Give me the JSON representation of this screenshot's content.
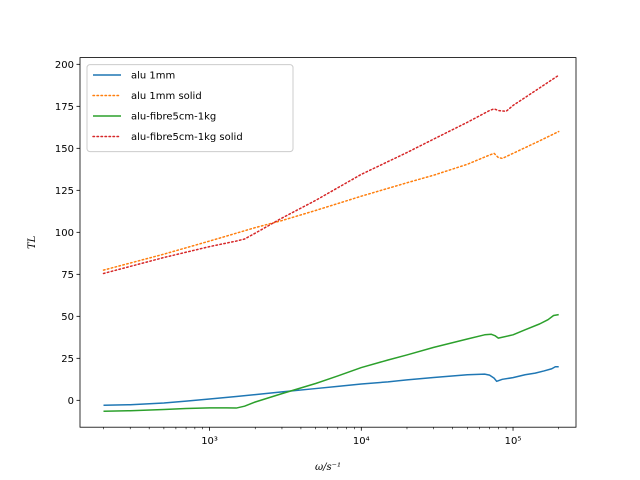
{
  "chart_data": {
    "type": "line",
    "xscale": "log",
    "xlim": [
      140,
      260000
    ],
    "ylim": [
      -16,
      204
    ],
    "xlabel": "ω/s⁻¹",
    "ylabel": "TL",
    "x_ticks": [
      {
        "value": 1000,
        "label": "10³"
      },
      {
        "value": 10000,
        "label": "10⁴"
      },
      {
        "value": 100000,
        "label": "10⁵"
      }
    ],
    "y_ticks": [
      0,
      25,
      50,
      75,
      100,
      125,
      150,
      175,
      200
    ],
    "grid": false,
    "legend_position": "top-left",
    "series": [
      {
        "name": "alu 1mm",
        "color": "#1f77b4",
        "style": "solid",
        "points": [
          [
            200,
            -2.9
          ],
          [
            300,
            -2.6
          ],
          [
            500,
            -1.6
          ],
          [
            700,
            -0.5
          ],
          [
            1000,
            0.8
          ],
          [
            1500,
            2.3
          ],
          [
            2000,
            3.4
          ],
          [
            3000,
            5.0
          ],
          [
            5000,
            7.0
          ],
          [
            7000,
            8.3
          ],
          [
            10000,
            9.7
          ],
          [
            15000,
            11.0
          ],
          [
            20000,
            12.2
          ],
          [
            30000,
            13.6
          ],
          [
            50000,
            15.2
          ],
          [
            65000,
            15.6
          ],
          [
            70000,
            15.0
          ],
          [
            75000,
            13.2
          ],
          [
            78000,
            11.3
          ],
          [
            85000,
            12.5
          ],
          [
            100000,
            13.5
          ],
          [
            120000,
            15.2
          ],
          [
            140000,
            16.2
          ],
          [
            160000,
            17.5
          ],
          [
            180000,
            18.8
          ],
          [
            190000,
            20.0
          ],
          [
            200000,
            20.0
          ]
        ]
      },
      {
        "name": "alu 1mm solid",
        "color": "#ff7f0e",
        "style": "dotted",
        "points": [
          [
            200,
            77.5
          ],
          [
            500,
            87.0
          ],
          [
            1000,
            94.8
          ],
          [
            2000,
            102.8
          ],
          [
            3000,
            107.0
          ],
          [
            5000,
            113.0
          ],
          [
            10000,
            121.5
          ],
          [
            20000,
            129.5
          ],
          [
            30000,
            134.0
          ],
          [
            50000,
            140.5
          ],
          [
            70000,
            146.0
          ],
          [
            75000,
            147.0
          ],
          [
            80000,
            144.5
          ],
          [
            85000,
            144.0
          ],
          [
            100000,
            147.0
          ],
          [
            150000,
            154.5
          ],
          [
            200000,
            160.0
          ]
        ]
      },
      {
        "name": "alu-fibre5cm-1kg",
        "color": "#2ca02c",
        "style": "solid",
        "points": [
          [
            200,
            -6.5
          ],
          [
            300,
            -6.2
          ],
          [
            500,
            -5.5
          ],
          [
            700,
            -4.9
          ],
          [
            1000,
            -4.5
          ],
          [
            1300,
            -4.5
          ],
          [
            1500,
            -4.6
          ],
          [
            1700,
            -3.5
          ],
          [
            2000,
            -1.0
          ],
          [
            3000,
            4.0
          ],
          [
            5000,
            10.0
          ],
          [
            7000,
            14.5
          ],
          [
            10000,
            19.5
          ],
          [
            15000,
            24.0
          ],
          [
            20000,
            27.0
          ],
          [
            30000,
            31.5
          ],
          [
            50000,
            36.5
          ],
          [
            65000,
            39.0
          ],
          [
            72000,
            39.3
          ],
          [
            76000,
            38.5
          ],
          [
            80000,
            37.0
          ],
          [
            100000,
            39.0
          ],
          [
            120000,
            42.0
          ],
          [
            150000,
            45.5
          ],
          [
            170000,
            48.0
          ],
          [
            185000,
            50.5
          ],
          [
            200000,
            51.0
          ]
        ]
      },
      {
        "name": "alu-fibre5cm-1kg solid",
        "color": "#d62728",
        "style": "dotted",
        "points": [
          [
            200,
            75.5
          ],
          [
            500,
            85.0
          ],
          [
            1000,
            91.5
          ],
          [
            1500,
            94.8
          ],
          [
            1700,
            96.0
          ],
          [
            2000,
            99.5
          ],
          [
            3000,
            108.5
          ],
          [
            5000,
            119.0
          ],
          [
            10000,
            134.5
          ],
          [
            20000,
            147.5
          ],
          [
            30000,
            155.5
          ],
          [
            50000,
            165.5
          ],
          [
            70000,
            172.5
          ],
          [
            75000,
            173.5
          ],
          [
            80000,
            172.5
          ],
          [
            90000,
            172.0
          ],
          [
            100000,
            175.5
          ],
          [
            150000,
            186.0
          ],
          [
            200000,
            193.5
          ]
        ]
      }
    ]
  }
}
